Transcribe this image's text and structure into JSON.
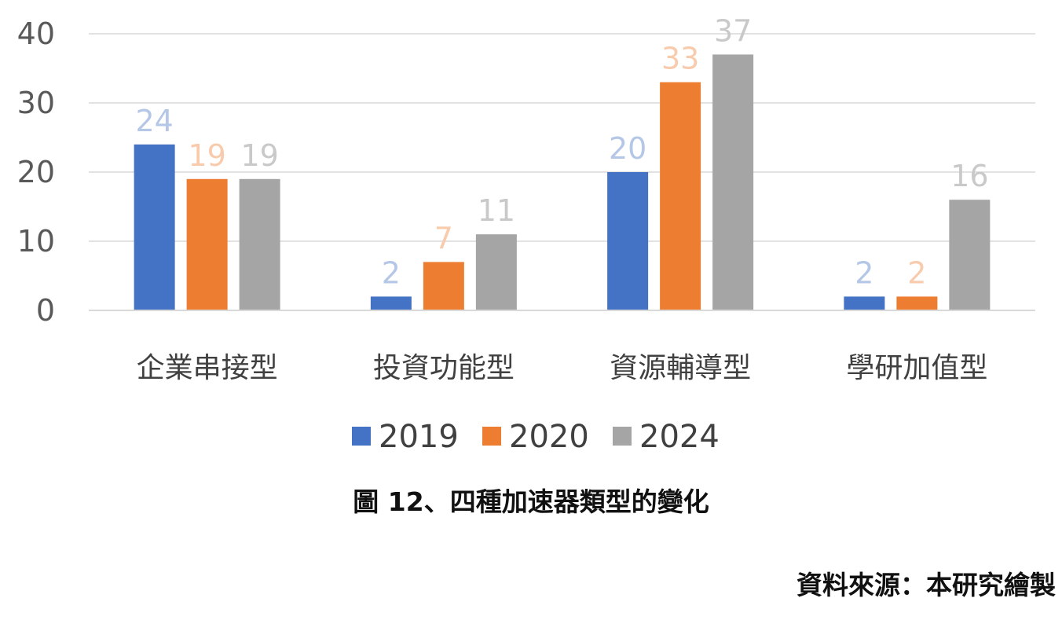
{
  "chart_data": {
    "type": "bar",
    "categories": [
      "企業串接型",
      "投資功能型",
      "資源輔導型",
      "學研加值型"
    ],
    "series": [
      {
        "name": "2019",
        "values": [
          24,
          2,
          20,
          2
        ],
        "color": "#4472C4",
        "label_color": "#B4C7E7"
      },
      {
        "name": "2020",
        "values": [
          19,
          7,
          33,
          2
        ],
        "color": "#ED7D31",
        "label_color": "#F8CBAD"
      },
      {
        "name": "2024",
        "values": [
          19,
          11,
          37,
          16
        ],
        "color": "#A5A5A5",
        "label_color": "#C9C9C9"
      }
    ],
    "yticks": [
      "0",
      "10",
      "20",
      "30",
      "40"
    ],
    "ylim": [
      0,
      40
    ],
    "grid": true,
    "legend": "bottom-center"
  },
  "caption": "圖 12、四種加速器類型的變化",
  "source": "資料來源：本研究繪製"
}
